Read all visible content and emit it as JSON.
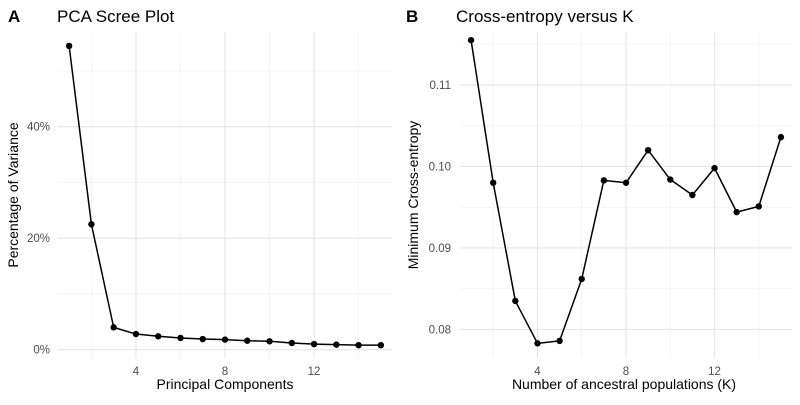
{
  "panels": [
    {
      "letter": "A",
      "title": "PCA Scree Plot",
      "xlabel": "Principal Components",
      "ylabel": "Percentage of Variance",
      "chart_data": {
        "type": "line",
        "x": [
          1,
          2,
          3,
          4,
          5,
          6,
          7,
          8,
          9,
          10,
          11,
          12,
          13,
          14,
          15
        ],
        "y": [
          54.5,
          22.5,
          4.0,
          2.8,
          2.4,
          2.1,
          1.9,
          1.8,
          1.6,
          1.5,
          1.2,
          1.0,
          0.9,
          0.8,
          0.8
        ],
        "xlim": [
          0.5,
          15.5
        ],
        "ylim": [
          -1.5,
          57
        ],
        "x_ticks": [
          4,
          8,
          12
        ],
        "x_tick_labels": [
          "4",
          "8",
          "12"
        ],
        "x_minor_ticks": [
          2,
          6,
          10,
          14
        ],
        "y_ticks": [
          0,
          20,
          40
        ],
        "y_tick_labels": [
          "0%",
          "20%",
          "40%"
        ],
        "y_minor_ticks": [
          10,
          30,
          50
        ],
        "grid": true,
        "marker": "circle",
        "color": "#000000"
      }
    },
    {
      "letter": "B",
      "title": "Cross-entropy versus K",
      "xlabel": "Number of ancestral populations (K)",
      "ylabel": "Minimum Cross-entropy",
      "chart_data": {
        "type": "line",
        "x": [
          1,
          2,
          3,
          4,
          5,
          6,
          7,
          8,
          9,
          10,
          11,
          12,
          13,
          14,
          15
        ],
        "y": [
          0.1155,
          0.098,
          0.0835,
          0.0783,
          0.0786,
          0.0862,
          0.0983,
          0.098,
          0.102,
          0.0984,
          0.0965,
          0.0998,
          0.0944,
          0.0951,
          0.1036
        ],
        "xlim": [
          0.5,
          15.5
        ],
        "ylim": [
          0.0765,
          0.1165
        ],
        "x_ticks": [
          4,
          8,
          12
        ],
        "x_tick_labels": [
          "4",
          "8",
          "12"
        ],
        "x_minor_ticks": [
          2,
          6,
          10,
          14
        ],
        "y_ticks": [
          0.08,
          0.09,
          0.1,
          0.11
        ],
        "y_tick_labels": [
          "0.08",
          "0.09",
          "0.10",
          "0.11"
        ],
        "y_minor_ticks": [
          0.085,
          0.095,
          0.105,
          0.115
        ],
        "grid": true,
        "marker": "circle",
        "color": "#000000"
      }
    }
  ]
}
